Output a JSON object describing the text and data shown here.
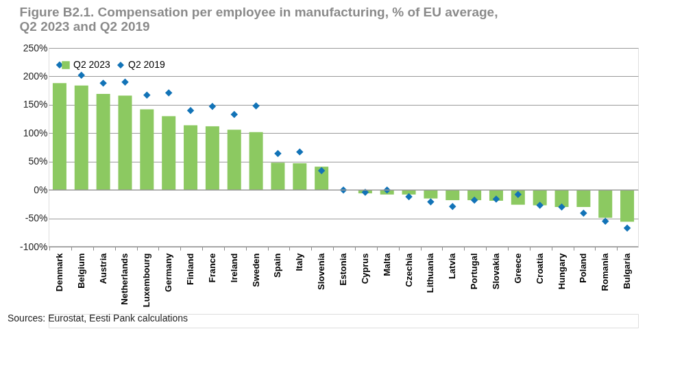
{
  "chart_data": {
    "type": "bar",
    "title": [
      "Figure B2.1. Compensation per employee in manufacturing, % of EU average,",
      "Q2 2023 and Q2 2019"
    ],
    "categories": [
      "Denmark",
      "Belgium",
      "Austria",
      "Netherlands",
      "Luxembourg",
      "Germany",
      "Finland",
      "France",
      "Ireland",
      "Sweden",
      "Spain",
      "Italy",
      "Slovenia",
      "Estonia",
      "Cyprus",
      "Malta",
      "Czechia",
      "Lithuania",
      "Latvia",
      "Portugal",
      "Slovakia",
      "Greece",
      "Croatia",
      "Hungary",
      "Poland",
      "Romania",
      "Bulgaria"
    ],
    "series": [
      {
        "name": "Q2 2023",
        "color": "#8cc961",
        "values": [
          188,
          184,
          169,
          166,
          142,
          130,
          114,
          112,
          106,
          102,
          48,
          47,
          41,
          0,
          -6,
          -8,
          -8,
          -15,
          -18,
          -18,
          -19,
          -26,
          -27,
          -30,
          -30,
          -49,
          -56
        ]
      },
      {
        "name": "Q2 2019",
        "type": "scatter",
        "marker": "diamond",
        "color": "#1273b7",
        "values": [
          220,
          202,
          188,
          190,
          167,
          171,
          140,
          147,
          133,
          148,
          64,
          67,
          34,
          0,
          -4,
          0,
          -12,
          -21,
          -29,
          -18,
          -16,
          -8,
          -27,
          -30,
          -41,
          -55,
          -67
        ]
      }
    ],
    "ylim": [
      -100,
      250
    ],
    "yticks": [
      {
        "value": -100,
        "label": "-100%"
      },
      {
        "value": -50,
        "label": "-50%"
      },
      {
        "value": 0,
        "label": "0%"
      },
      {
        "value": 50,
        "label": "50%"
      },
      {
        "value": 100,
        "label": "100%"
      },
      {
        "value": 150,
        "label": "150%"
      },
      {
        "value": 200,
        "label": "200%"
      },
      {
        "value": 250,
        "label": "250%"
      }
    ],
    "grid": "y",
    "legend": "top left",
    "annotations": [
      "Sources: Eurostat, Eesti Pank calculations"
    ]
  }
}
